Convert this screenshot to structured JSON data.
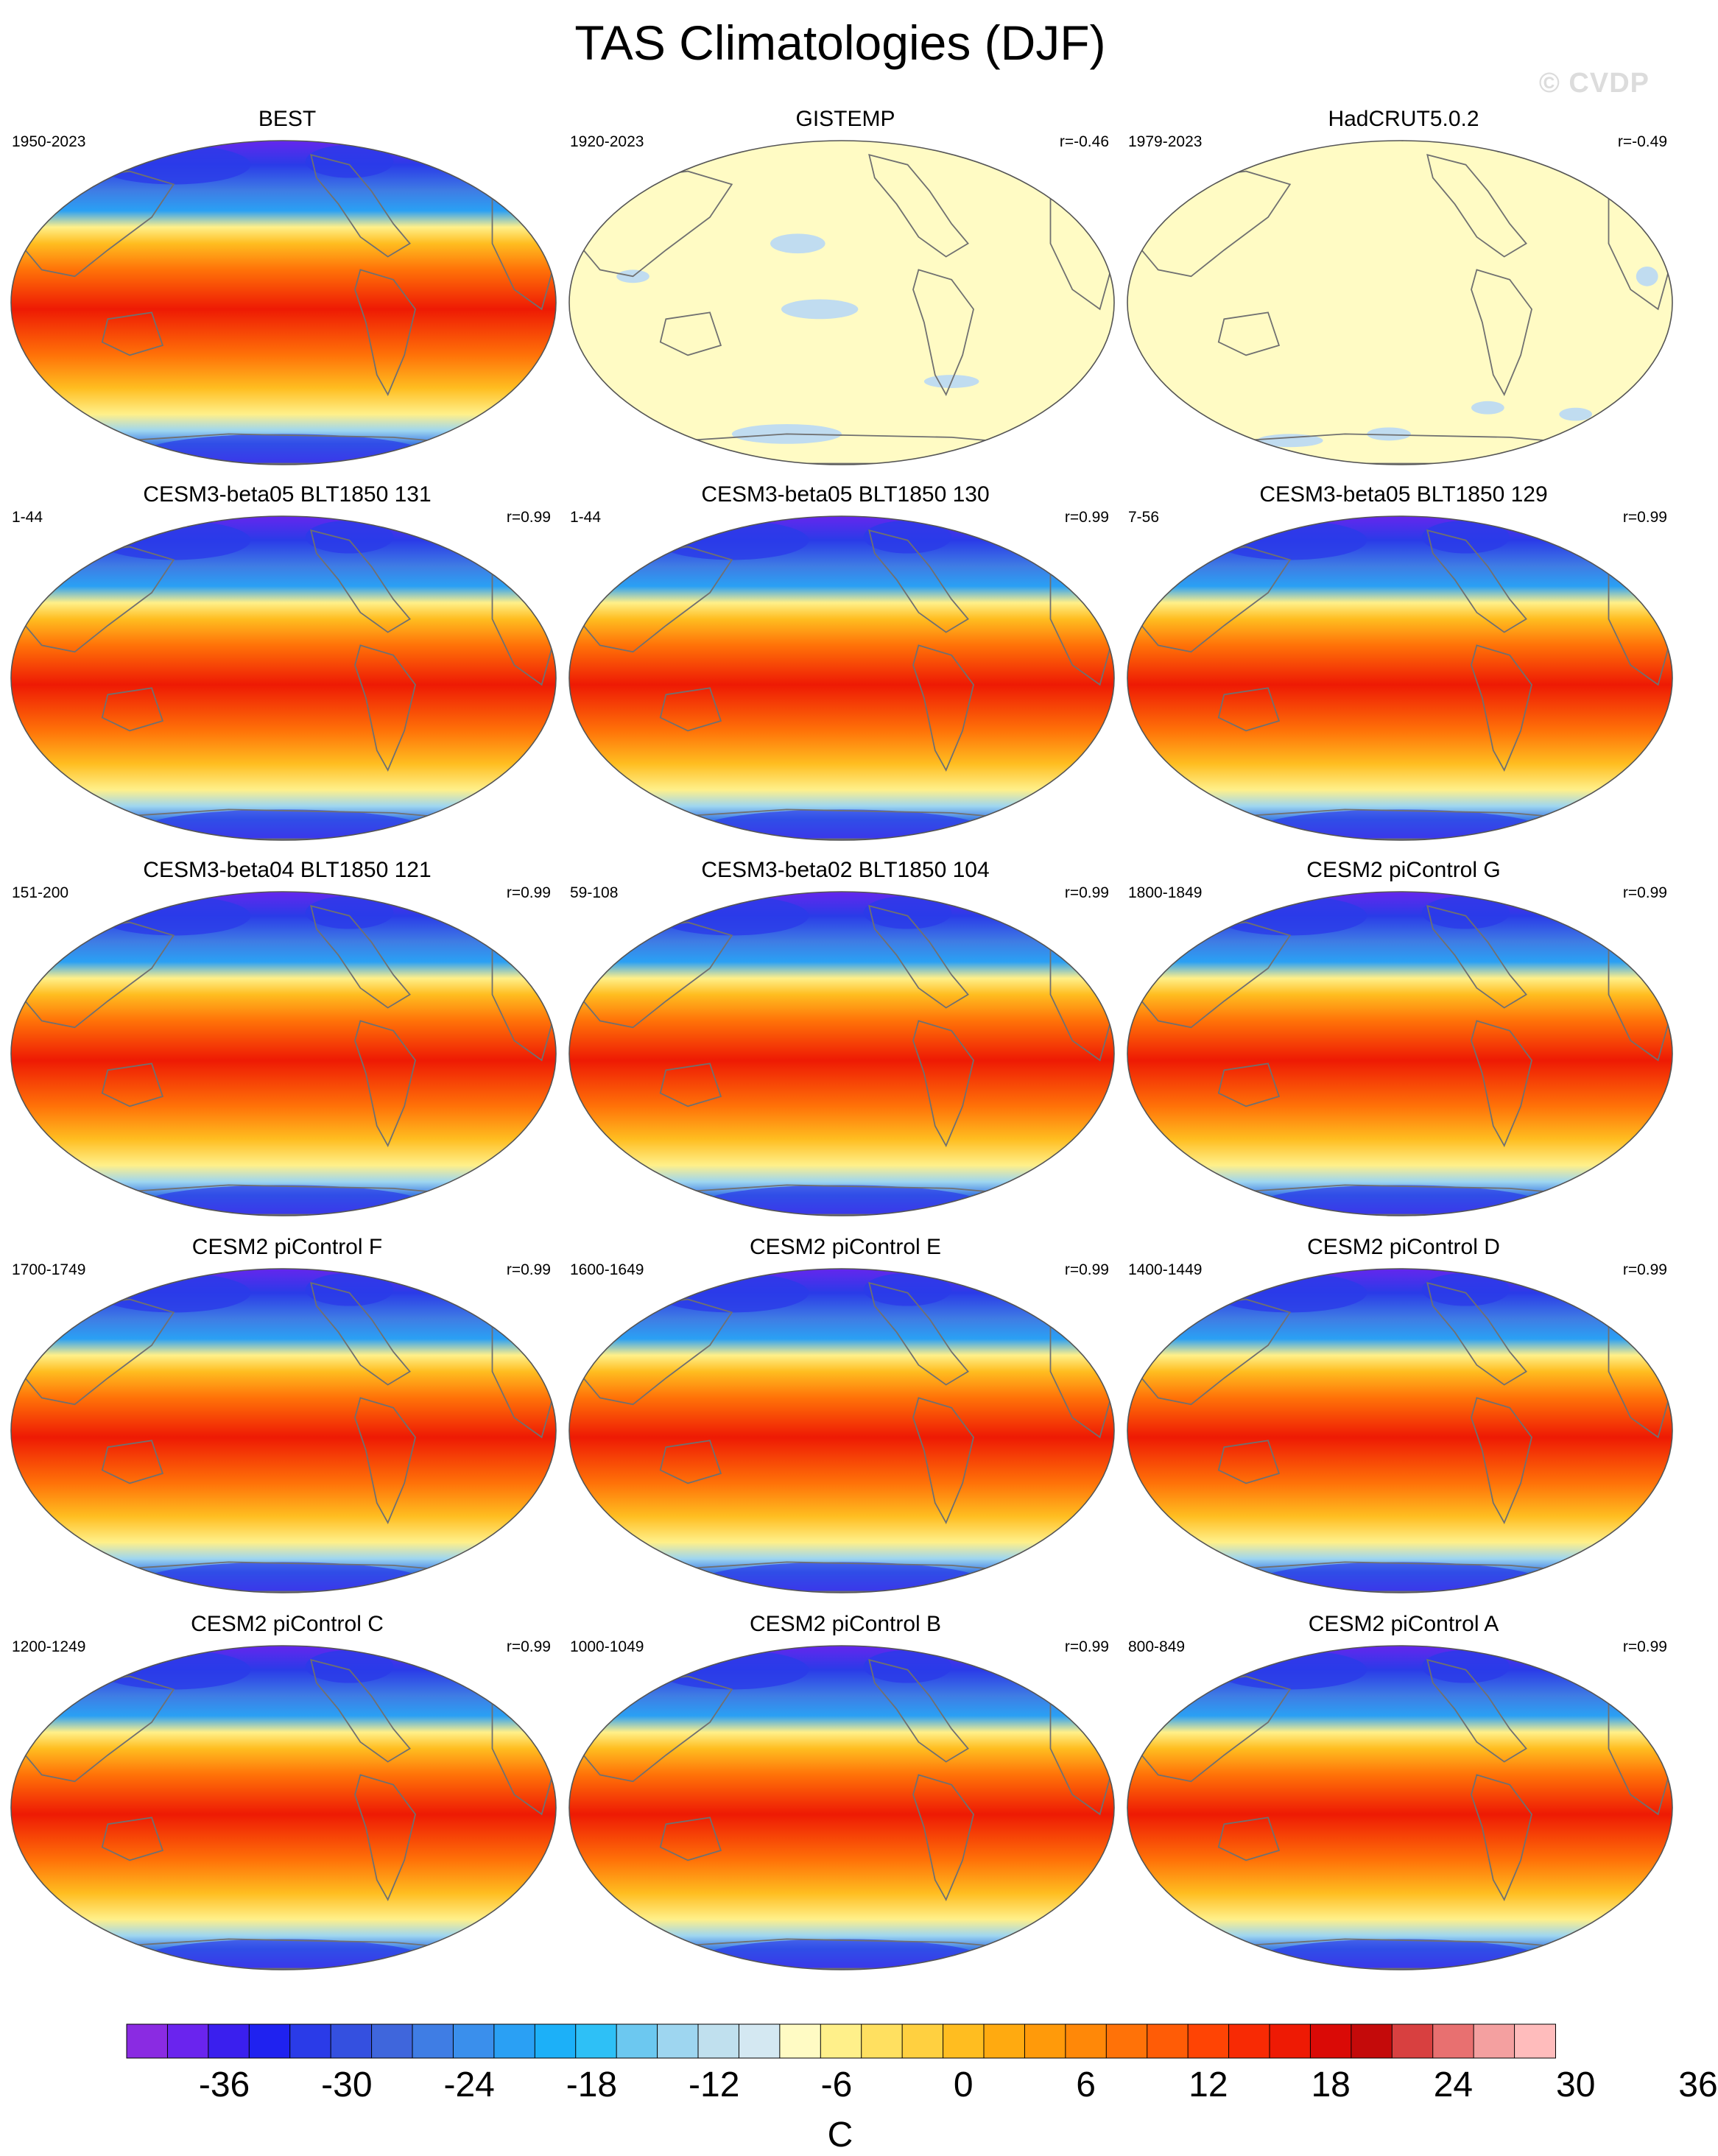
{
  "title": "TAS Climatologies (DJF)",
  "watermark": "© CVDP",
  "panels": [
    {
      "title": "BEST",
      "years": "1950-2023",
      "corr": "",
      "style": "full"
    },
    {
      "title": "GISTEMP",
      "years": "1920-2023",
      "corr": "r=-0.46",
      "style": "diff"
    },
    {
      "title": "HadCRUT5.0.2",
      "years": "1979-2023",
      "corr": "r=-0.49",
      "style": "diff"
    },
    {
      "title": "CESM3-beta05 BLT1850 131",
      "years": "1-44",
      "corr": "r=0.99",
      "style": "full"
    },
    {
      "title": "CESM3-beta05 BLT1850 130",
      "years": "1-44",
      "corr": "r=0.99",
      "style": "full"
    },
    {
      "title": "CESM3-beta05 BLT1850 129",
      "years": "7-56",
      "corr": "r=0.99",
      "style": "full"
    },
    {
      "title": "CESM3-beta04 BLT1850 121",
      "years": "151-200",
      "corr": "r=0.99",
      "style": "full"
    },
    {
      "title": "CESM3-beta02 BLT1850 104",
      "years": "59-108",
      "corr": "r=0.99",
      "style": "full"
    },
    {
      "title": "CESM2 piControl G",
      "years": "1800-1849",
      "corr": "r=0.99",
      "style": "full"
    },
    {
      "title": "CESM2 piControl F",
      "years": "1700-1749",
      "corr": "r=0.99",
      "style": "full"
    },
    {
      "title": "CESM2 piControl E",
      "years": "1600-1649",
      "corr": "r=0.99",
      "style": "full"
    },
    {
      "title": "CESM2 piControl D",
      "years": "1400-1449",
      "corr": "r=0.99",
      "style": "full"
    },
    {
      "title": "CESM2 piControl C",
      "years": "1200-1249",
      "corr": "r=0.99",
      "style": "full"
    },
    {
      "title": "CESM2 piControl B",
      "years": "1000-1049",
      "corr": "r=0.99",
      "style": "full"
    },
    {
      "title": "CESM2 piControl A",
      "years": "800-849",
      "corr": "r=0.99",
      "style": "full"
    }
  ],
  "colorbar": {
    "unit": "C",
    "labels": [
      "-36",
      "-30",
      "-24",
      "-18",
      "-12",
      "-6",
      "0",
      "6",
      "12",
      "18",
      "24",
      "30",
      "36"
    ],
    "colors": [
      "#8a2be2",
      "#6a24ee",
      "#3a1fee",
      "#1f22f0",
      "#2a3be8",
      "#3450e0",
      "#3f66dc",
      "#3f7de4",
      "#3a8fec",
      "#2aa0f4",
      "#1cb0f8",
      "#2ec0f6",
      "#6cc8f0",
      "#9ed6f0",
      "#c0e0ee",
      "#d4e8f2",
      "#fffbc4",
      "#fff08a",
      "#ffe060",
      "#ffd040",
      "#ffbd20",
      "#ffaa10",
      "#ff9a0a",
      "#ff8808",
      "#ff7208",
      "#ff5c06",
      "#ff4404",
      "#f82a04",
      "#ee1a04",
      "#da0a06",
      "#c40a0a",
      "#d84040",
      "#e87070",
      "#f4a0a0",
      "#ffbcbc"
    ],
    "map_colors": {
      "full_gradient": [
        "#6a24ee",
        "#2a3be8",
        "#3f7de4",
        "#2aa0f4",
        "#9ed6f0",
        "#fff08a",
        "#ffbd20",
        "#ff7208",
        "#ee1a04"
      ],
      "diff_background": "#fffbc4",
      "diff_patch": "#c0dcf0",
      "coast": "#707070"
    }
  }
}
